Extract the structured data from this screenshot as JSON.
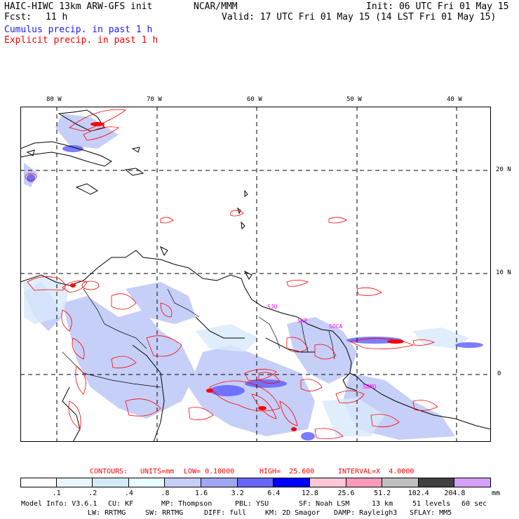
{
  "header": {
    "model": "HAIC-HIWC 13km ARW-GFS init",
    "org": "NCAR/MMM",
    "init": "Init: 06 UTC Fri 01 May 15",
    "fcst_label": "Fcst:",
    "fcst_value": "11 h",
    "valid": "Valid: 17 UTC Fri 01 May 15 (14 LST Fri 01 May 15)",
    "cumulus": "Cumulus precip. in past 1 h",
    "explicit": "Explicit precip. in past 1 h"
  },
  "map": {
    "lon_labels": [
      "80 W",
      "70 W",
      "60 W",
      "50 W",
      "40 W"
    ],
    "lat_labels": [
      "20 N",
      "10 N",
      "0"
    ],
    "stations": [
      "SJU",
      "SKP",
      "SOCA",
      "SBMQ"
    ],
    "colors": {
      "coast": "#000000",
      "grid": "#000000",
      "explicit": "#ff0000",
      "cumulus": "#6a6aff",
      "station": "#ff00ff"
    }
  },
  "contours_line": {
    "label": "CONTOURS:",
    "units": "UNITS=mm",
    "low": "LOW= 0.10000",
    "high": "HIGH=  25.600",
    "interval": "INTERVAL=X  4.0000"
  },
  "legend": {
    "levels": [
      ".1",
      ".2",
      ".4",
      ".8",
      "1.6",
      "3.2",
      "6.4",
      "12.8",
      "25.6",
      "51.2",
      "102.4",
      "204.8"
    ],
    "unit": "mm",
    "colors": [
      "#ffffff",
      "#eaf6ff",
      "#d2ebf7",
      "#e6ffff",
      "#c6cef8",
      "#9ea7f5",
      "#6666ff",
      "#0000ff",
      "#ffc8d4",
      "#ff99bb",
      "#c0c0c0",
      "#404040",
      "#d4a0ff"
    ]
  },
  "model_info": {
    "line1": [
      "Model Info: V3.6.1",
      "CU: KF",
      "MP: Thompson",
      "PBL: YSU",
      "SF: Noah LSM",
      "13 km",
      "51 levels",
      "60 sec"
    ],
    "line2": [
      "LW: RRTMG",
      "SW: RRTMG",
      "DIFF: full",
      "KM: 2D Smagor",
      "DAMP: Rayleigh3",
      "SFLAY: MM5"
    ]
  }
}
